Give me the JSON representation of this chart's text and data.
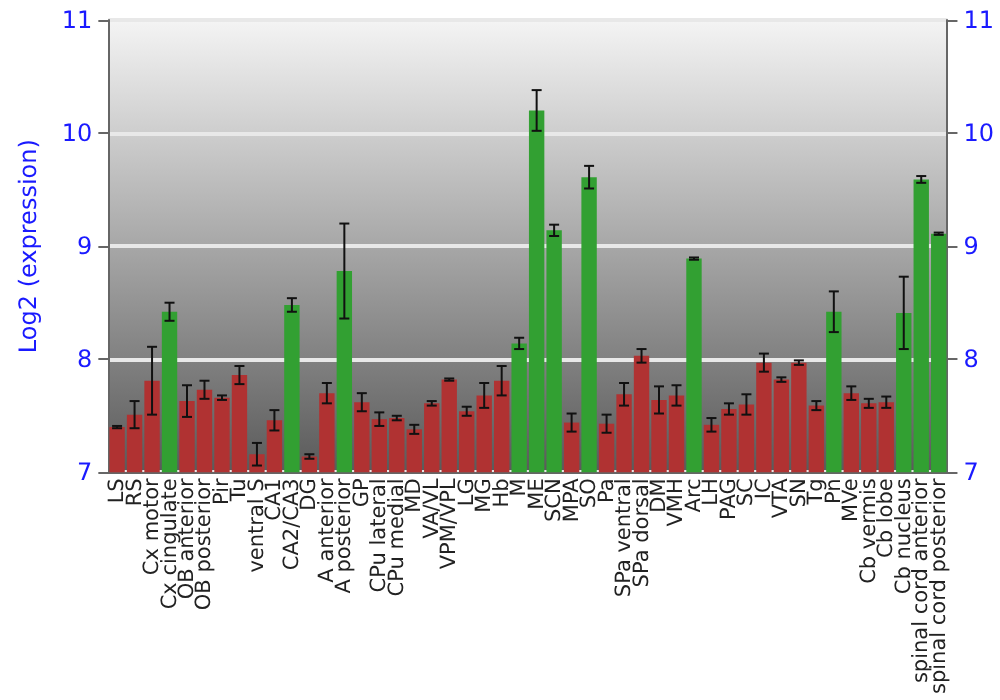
{
  "chart_data": {
    "type": "bar",
    "ylabel": "Log2 (expression)",
    "categories": [
      "LS",
      "RS",
      "Cx motor",
      "Cx cingulate",
      "OB anterior",
      "OB posterior",
      "Pir",
      "Tu",
      "ventral S",
      "CA1",
      "CA2/CA3",
      "DG",
      "A anterior",
      "A posterior",
      "GP",
      "CPu lateral",
      "CPu medial",
      "MD",
      "VA/VL",
      "VPM/VPL",
      "LG",
      "MG",
      "Hb",
      "M",
      "ME",
      "SCN",
      "MPA",
      "SO",
      "Pa",
      "SPa ventral",
      "SPa dorsal",
      "DM",
      "VMH",
      "Arc",
      "LH",
      "PAG",
      "SC",
      "IC",
      "VTA",
      "SN",
      "Tg",
      "Pn",
      "MVe",
      "Cb vermis",
      "Cb lobe",
      "Cb nucleus",
      "spinal cord anterior",
      "spinal cord posterior"
    ],
    "values": [
      7.4,
      7.51,
      7.81,
      8.42,
      7.63,
      7.73,
      7.66,
      7.86,
      7.16,
      7.46,
      8.48,
      7.14,
      7.7,
      8.78,
      7.62,
      7.47,
      7.48,
      7.38,
      7.61,
      7.82,
      7.54,
      7.68,
      7.81,
      8.14,
      10.2,
      9.14,
      7.44,
      9.61,
      7.43,
      7.69,
      8.03,
      7.64,
      7.68,
      8.89,
      7.42,
      7.56,
      7.6,
      7.97,
      7.82,
      7.97,
      7.59,
      8.42,
      7.7,
      7.61,
      7.62,
      8.41,
      9.59,
      9.11
    ],
    "errors": [
      0.01,
      0.12,
      0.3,
      0.08,
      0.14,
      0.08,
      0.02,
      0.08,
      0.1,
      0.09,
      0.06,
      0.02,
      0.09,
      0.42,
      0.08,
      0.06,
      0.02,
      0.04,
      0.02,
      0.01,
      0.04,
      0.11,
      0.13,
      0.05,
      0.18,
      0.05,
      0.08,
      0.1,
      0.08,
      0.1,
      0.06,
      0.12,
      0.09,
      0.01,
      0.06,
      0.05,
      0.09,
      0.08,
      0.02,
      0.02,
      0.04,
      0.18,
      0.06,
      0.04,
      0.05,
      0.32,
      0.03,
      0.01
    ],
    "colors": [
      "#b03232",
      "#b03232",
      "#b03232",
      "#32a032",
      "#b03232",
      "#b03232",
      "#b03232",
      "#b03232",
      "#b03232",
      "#b03232",
      "#32a032",
      "#b03232",
      "#b03232",
      "#32a032",
      "#b03232",
      "#b03232",
      "#b03232",
      "#b03232",
      "#b03232",
      "#b03232",
      "#b03232",
      "#b03232",
      "#b03232",
      "#32a032",
      "#32a032",
      "#32a032",
      "#b03232",
      "#32a032",
      "#b03232",
      "#b03232",
      "#b03232",
      "#b03232",
      "#b03232",
      "#32a032",
      "#b03232",
      "#b03232",
      "#b03232",
      "#b03232",
      "#b03232",
      "#b03232",
      "#b03232",
      "#32a032",
      "#b03232",
      "#b03232",
      "#b03232",
      "#32a032",
      "#32a032",
      "#32a032"
    ],
    "ylim": [
      7,
      11
    ],
    "yticks": [
      7,
      8,
      9,
      10,
      11
    ],
    "y2lim": [
      7,
      11
    ],
    "y2ticks": [
      7,
      8,
      9,
      10,
      11
    ],
    "grid": "y"
  }
}
